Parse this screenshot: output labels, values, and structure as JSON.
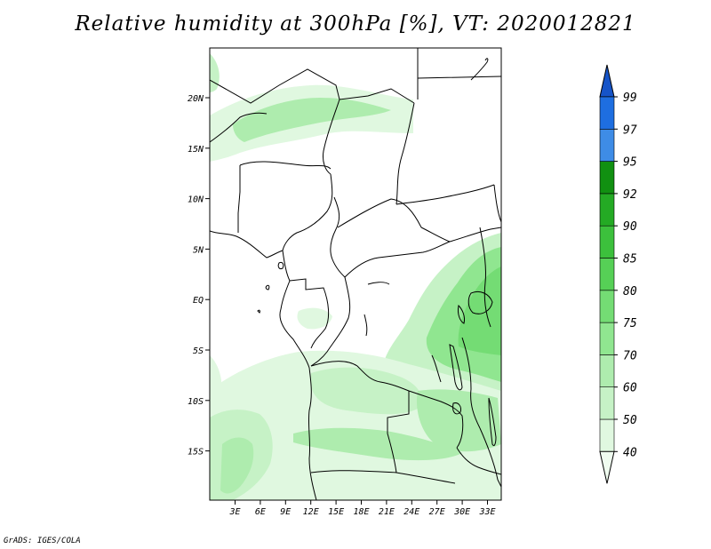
{
  "title": "Relative humidity at 300hPa [%], VT: 2020012821",
  "credit": "GrADS: IGES/COLA",
  "map": {
    "lon_labels": [
      "3E",
      "6E",
      "9E",
      "12E",
      "15E",
      "18E",
      "21E",
      "24E",
      "27E",
      "30E",
      "33E"
    ],
    "lat_labels": [
      "20N",
      "15N",
      "10N",
      "5N",
      "EQ",
      "5S",
      "10S",
      "15S"
    ]
  },
  "colorbar": {
    "levels": [
      "40",
      "50",
      "60",
      "70",
      "75",
      "80",
      "85",
      "90",
      "92",
      "95",
      "97",
      "99"
    ],
    "colors": [
      "#f0fcf0",
      "#e0f8e0",
      "#c6f2c6",
      "#aeecae",
      "#90e690",
      "#74dc74",
      "#56d056",
      "#3cc03c",
      "#24aa24",
      "#119011",
      "#3e8ce6",
      "#1e6ee0",
      "#1654c8"
    ]
  }
}
